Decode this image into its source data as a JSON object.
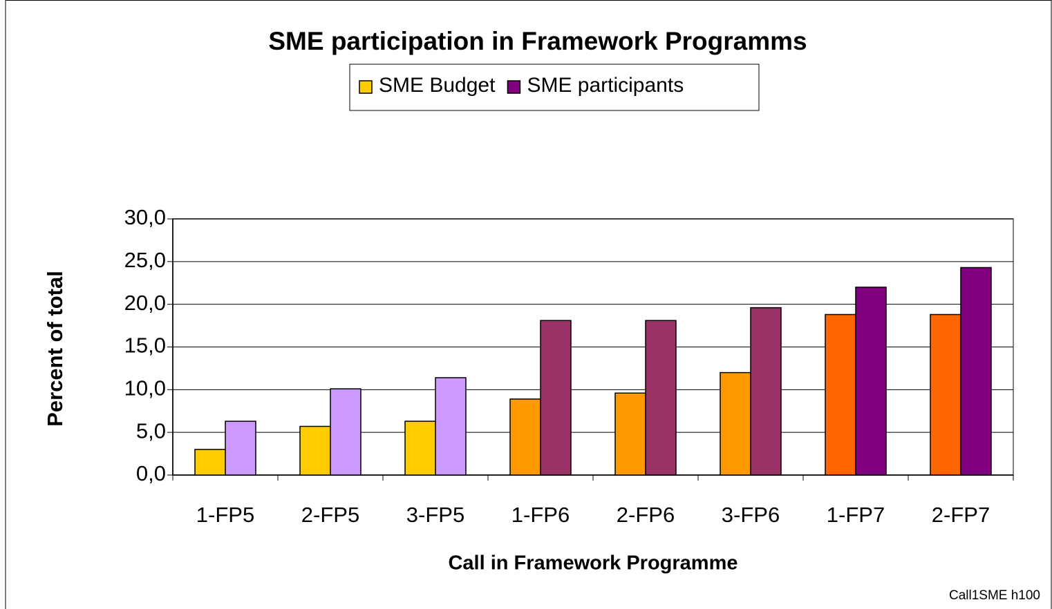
{
  "chart_data": {
    "type": "bar",
    "title": "SME participation in Framework Programms",
    "x_label": "Call in Framework Programme",
    "y_label": "Percent of total",
    "footer": "Call1SME h100",
    "categories": [
      "1-FP5",
      "2-FP5",
      "3-FP5",
      "1-FP6",
      "2-FP6",
      "3-FP6",
      "1-FP7",
      "2-FP7"
    ],
    "series": [
      {
        "name": "SME Budget",
        "color": "#ffcc00",
        "colors": [
          "#ffcc00",
          "#ffcc00",
          "#ffcc00",
          "#ff9900",
          "#ff9900",
          "#ff9900",
          "#ff6600",
          "#ff6600"
        ],
        "values": [
          3.0,
          5.7,
          6.3,
          8.9,
          9.6,
          12.0,
          18.8,
          18.8
        ]
      },
      {
        "name": "SME participants",
        "color": "#800080",
        "colors": [
          "#cc99ff",
          "#cc99ff",
          "#cc99ff",
          "#993366",
          "#993366",
          "#993366",
          "#800080",
          "#800080"
        ],
        "values": [
          6.3,
          10.1,
          11.4,
          18.1,
          18.1,
          19.6,
          22.0,
          24.3
        ]
      }
    ],
    "ylim": [
      0,
      30
    ],
    "yticks": [
      {
        "value": 0,
        "label": "0,0"
      },
      {
        "value": 5,
        "label": "5,0"
      },
      {
        "value": 10,
        "label": "10,0"
      },
      {
        "value": 15,
        "label": "15,0"
      },
      {
        "value": 20,
        "label": "20,0"
      },
      {
        "value": 25,
        "label": "25,0"
      },
      {
        "value": 30,
        "label": "30,0"
      }
    ],
    "grid": true,
    "legend": "top"
  }
}
